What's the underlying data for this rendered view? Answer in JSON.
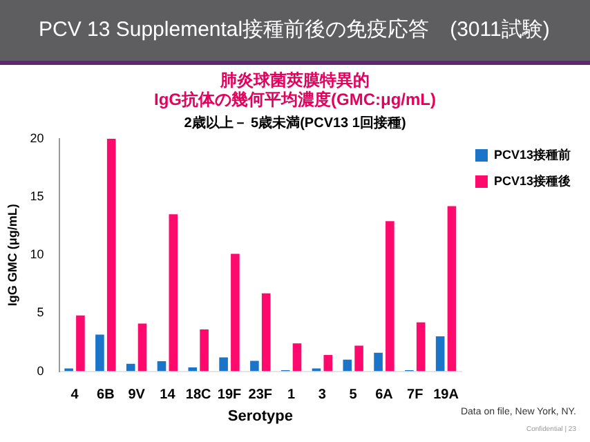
{
  "chart_data": {
    "type": "bar",
    "title": "PCV 13 Supplemental接種前後の免疫応答　(3011試験)",
    "subtitle": "肺炎球菌莢膜特異的\nIgG抗体の幾何平均濃度(GMC:μg/mL)",
    "xlabel": "Serotype",
    "ylabel": "IgG GMC (μg/mL)",
    "categories": [
      "4",
      "6B",
      "9V",
      "14",
      "18C",
      "19F",
      "23F",
      "1",
      "3",
      "5",
      "6A",
      "7F",
      "19A"
    ],
    "series": [
      {
        "name": "PCV13接種前",
        "color": "#1a74c8",
        "values": [
          0.25,
          3.15,
          0.65,
          0.87,
          0.33,
          1.2,
          0.9,
          0.1,
          0.25,
          1.0,
          1.6,
          0.1,
          3.0
        ]
      },
      {
        "name": "PCV13接種後",
        "color": "#ff0a6c",
        "values": [
          4.8,
          20,
          4.1,
          13.5,
          3.6,
          10.1,
          6.7,
          2.4,
          1.4,
          2.2,
          12.9,
          4.2,
          14.2
        ]
      }
    ],
    "ylim": [
      0,
      20
    ],
    "yticks": [
      0,
      5,
      10,
      15,
      20
    ],
    "grid": false,
    "legend": "top right",
    "annotations": [
      "2歳以上－ 5歳未満(PCV13 1回接種)",
      "Data on file, New York, NY.",
      "Confidential | 23"
    ]
  }
}
